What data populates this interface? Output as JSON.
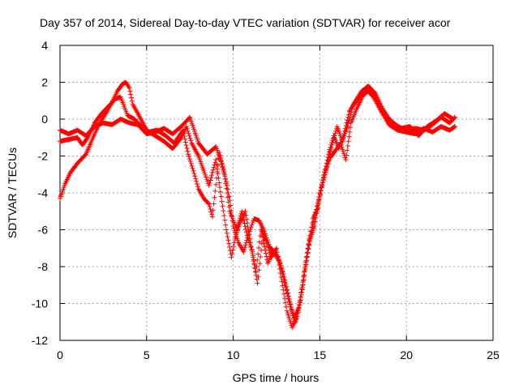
{
  "chart_data": {
    "type": "scatter",
    "title": "Day 357 of 2014, Sidereal Day-to-day VTEC variation (SDTVAR) for receiver acor",
    "xlabel": "GPS time / hours",
    "ylabel": "SDTVAR / TECUs",
    "xlim": [
      0,
      25
    ],
    "ylim": [
      -12,
      4
    ],
    "xticks": [
      "0",
      "5",
      "10",
      "15",
      "20",
      "25"
    ],
    "yticks": [
      "-12",
      "-10",
      "-8",
      "-6",
      "-4",
      "-2",
      "0",
      "2",
      "4"
    ],
    "grid": true,
    "marker": "+",
    "color": "#ff0000",
    "series": [
      {
        "name": "",
        "points": [
          [
            0.0,
            -4.3
          ],
          [
            0.3,
            -3.5
          ],
          [
            0.6,
            -2.9
          ],
          [
            1.0,
            -2.4
          ],
          [
            1.5,
            -1.9
          ],
          [
            2.0,
            -0.8
          ],
          [
            2.3,
            -0.2
          ],
          [
            2.7,
            0.4
          ],
          [
            3.0,
            0.9
          ],
          [
            3.3,
            1.5
          ],
          [
            3.6,
            1.9
          ],
          [
            3.8,
            2.0
          ],
          [
            4.0,
            1.7
          ],
          [
            4.2,
            0.8
          ],
          [
            4.5,
            0.3
          ],
          [
            5.0,
            -0.6
          ],
          [
            5.5,
            -0.9
          ],
          [
            6.0,
            -1.2
          ],
          [
            6.5,
            -1.6
          ],
          [
            7.0,
            -1.0
          ],
          [
            7.3,
            -0.4
          ],
          [
            7.6,
            -1.3
          ],
          [
            8.0,
            -2.0
          ],
          [
            8.3,
            -2.8
          ],
          [
            8.6,
            -3.6
          ],
          [
            9.0,
            -2.2
          ],
          [
            9.3,
            -4.2
          ],
          [
            9.6,
            -6.0
          ],
          [
            9.9,
            -7.5
          ],
          [
            10.1,
            -6.5
          ],
          [
            10.4,
            -5.6
          ],
          [
            10.7,
            -5.0
          ],
          [
            11.0,
            -6.7
          ],
          [
            11.3,
            -8.3
          ],
          [
            11.6,
            -6.0
          ],
          [
            11.9,
            -6.6
          ],
          [
            12.2,
            -7.5
          ],
          [
            12.5,
            -7.0
          ],
          [
            12.8,
            -8.8
          ],
          [
            13.1,
            -10.4
          ],
          [
            13.4,
            -11.3
          ],
          [
            13.7,
            -10.7
          ],
          [
            14.0,
            -9.0
          ],
          [
            14.3,
            -7.0
          ],
          [
            14.6,
            -5.4
          ],
          [
            14.9,
            -4.8
          ],
          [
            15.2,
            -3.2
          ],
          [
            15.5,
            -1.9
          ],
          [
            15.8,
            -0.9
          ],
          [
            16.1,
            -1.6
          ],
          [
            16.4,
            -0.8
          ],
          [
            16.7,
            0.4
          ],
          [
            17.0,
            0.9
          ],
          [
            17.4,
            1.5
          ],
          [
            17.8,
            1.8
          ],
          [
            18.2,
            1.4
          ],
          [
            18.6,
            0.6
          ],
          [
            19.0,
            0.0
          ],
          [
            19.5,
            -0.4
          ],
          [
            20.0,
            -0.6
          ],
          [
            20.5,
            -0.5
          ],
          [
            21.0,
            -0.6
          ],
          [
            21.5,
            -0.3
          ],
          [
            22.0,
            0.1
          ],
          [
            22.5,
            -0.2
          ],
          [
            22.8,
            0.1
          ]
        ]
      },
      {
        "name": "",
        "points": [
          [
            0.0,
            -0.6
          ],
          [
            0.5,
            -0.8
          ],
          [
            1.0,
            -0.6
          ],
          [
            1.5,
            -0.9
          ],
          [
            2.0,
            -0.4
          ],
          [
            2.5,
            -0.2
          ],
          [
            3.0,
            -0.3
          ],
          [
            3.5,
            0.0
          ],
          [
            4.0,
            -0.2
          ],
          [
            4.5,
            -0.3
          ],
          [
            5.0,
            -0.8
          ],
          [
            5.5,
            -0.7
          ],
          [
            6.0,
            -0.5
          ],
          [
            6.5,
            -0.8
          ],
          [
            7.0,
            -0.4
          ],
          [
            7.5,
            0.1
          ],
          [
            8.0,
            -1.3
          ],
          [
            8.5,
            -1.9
          ],
          [
            9.0,
            -1.5
          ],
          [
            9.3,
            -2.3
          ],
          [
            9.6,
            -3.4
          ],
          [
            9.8,
            -4.4
          ],
          [
            10.0,
            -5.8
          ],
          [
            10.3,
            -6.7
          ],
          [
            10.6,
            -7.2
          ],
          [
            10.9,
            -6.2
          ],
          [
            11.2,
            -5.4
          ],
          [
            11.5,
            -5.5
          ],
          [
            11.8,
            -6.1
          ],
          [
            12.1,
            -6.9
          ],
          [
            12.4,
            -7.3
          ],
          [
            12.7,
            -7.8
          ],
          [
            13.0,
            -9.0
          ],
          [
            13.3,
            -10.2
          ],
          [
            13.6,
            -11.0
          ],
          [
            13.9,
            -9.8
          ],
          [
            14.2,
            -7.9
          ],
          [
            14.5,
            -6.2
          ],
          [
            14.8,
            -4.9
          ],
          [
            15.1,
            -3.7
          ],
          [
            15.4,
            -2.6
          ],
          [
            15.7,
            -1.4
          ],
          [
            16.0,
            -0.4
          ],
          [
            16.3,
            -1.2
          ],
          [
            16.6,
            -0.4
          ],
          [
            16.9,
            0.7
          ],
          [
            17.3,
            1.2
          ],
          [
            17.7,
            1.6
          ],
          [
            18.1,
            1.2
          ],
          [
            18.5,
            0.5
          ],
          [
            19.0,
            -0.3
          ],
          [
            19.5,
            -0.6
          ],
          [
            20.0,
            -0.7
          ],
          [
            20.5,
            -0.8
          ],
          [
            21.0,
            -0.5
          ],
          [
            21.5,
            -0.7
          ],
          [
            22.0,
            -0.4
          ],
          [
            22.5,
            -0.6
          ],
          [
            22.8,
            -0.4
          ]
        ]
      },
      {
        "name": "",
        "points": [
          [
            0.0,
            -1.2
          ],
          [
            0.5,
            -1.1
          ],
          [
            1.0,
            -1.0
          ],
          [
            1.3,
            -1.4
          ],
          [
            1.6,
            -1.0
          ],
          [
            2.0,
            -0.2
          ],
          [
            2.4,
            0.3
          ],
          [
            2.8,
            0.7
          ],
          [
            3.2,
            1.1
          ],
          [
            3.5,
            1.2
          ],
          [
            3.9,
            0.2
          ],
          [
            4.3,
            0.0
          ],
          [
            4.7,
            -0.4
          ],
          [
            5.1,
            -0.7
          ],
          [
            5.6,
            -0.6
          ],
          [
            6.1,
            -0.9
          ],
          [
            6.6,
            -1.3
          ],
          [
            7.1,
            -0.6
          ],
          [
            7.4,
            -1.9
          ],
          [
            7.7,
            -2.8
          ],
          [
            8.0,
            -3.8
          ],
          [
            8.3,
            -4.3
          ],
          [
            8.6,
            -4.6
          ],
          [
            8.8,
            -5.3
          ],
          [
            9.2,
            -1.8
          ],
          [
            9.5,
            -3.0
          ],
          [
            9.8,
            -5.0
          ],
          [
            10.2,
            -6.0
          ],
          [
            10.5,
            -5.0
          ],
          [
            10.8,
            -6.3
          ],
          [
            11.1,
            -7.2
          ],
          [
            11.4,
            -8.9
          ],
          [
            11.7,
            -6.4
          ],
          [
            12.0,
            -7.8
          ],
          [
            12.3,
            -7.1
          ],
          [
            12.6,
            -7.5
          ],
          [
            12.9,
            -8.4
          ],
          [
            13.2,
            -9.6
          ],
          [
            13.5,
            -10.8
          ],
          [
            13.8,
            -10.2
          ],
          [
            14.1,
            -8.3
          ],
          [
            14.4,
            -6.6
          ],
          [
            14.7,
            -5.8
          ],
          [
            15.0,
            -4.0
          ],
          [
            15.3,
            -2.9
          ],
          [
            15.6,
            -2.1
          ],
          [
            15.9,
            -1.7
          ],
          [
            16.2,
            -1.3
          ],
          [
            16.5,
            -2.2
          ],
          [
            16.8,
            -0.2
          ],
          [
            17.1,
            0.5
          ],
          [
            17.5,
            1.3
          ],
          [
            17.9,
            1.6
          ],
          [
            18.3,
            1.0
          ],
          [
            18.7,
            0.3
          ],
          [
            19.2,
            -0.2
          ],
          [
            19.7,
            -0.5
          ],
          [
            20.2,
            -0.4
          ],
          [
            20.7,
            -0.9
          ],
          [
            21.2,
            -0.4
          ],
          [
            21.7,
            -0.1
          ],
          [
            22.2,
            0.3
          ],
          [
            22.7,
            0.0
          ]
        ]
      }
    ]
  }
}
